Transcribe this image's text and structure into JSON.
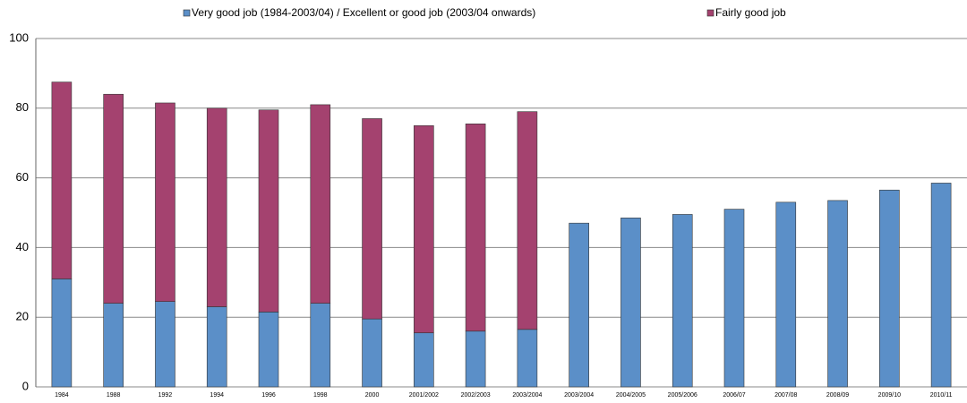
{
  "chart_data": {
    "type": "stacked_bar",
    "categories": [
      "1984",
      "1988",
      "1992",
      "1994",
      "1996",
      "1998",
      "2000",
      "2001/2002",
      "2002/2003",
      "2003/2004",
      "2003/2004",
      "2004/2005",
      "2005/2006",
      "2006/07",
      "2007/08",
      "2008/09",
      "2009/10",
      "2010/11"
    ],
    "series": [
      {
        "name": "Very good job (1984-2003/04) / Excellent or good job (2003/04 onwards)",
        "color": "#5b8fc8",
        "values": [
          31,
          24,
          24.5,
          23,
          21.5,
          24,
          19.5,
          15.5,
          16,
          16.5,
          47,
          48.5,
          49.5,
          51,
          53,
          53.5,
          56.5,
          58.5
        ]
      },
      {
        "name": "Fairly good job",
        "color": "#a4426f",
        "values": [
          56.5,
          60,
          57,
          57,
          58,
          57,
          57.5,
          59.5,
          59.5,
          62.5,
          null,
          null,
          null,
          null,
          null,
          null,
          null,
          null
        ]
      }
    ],
    "ylim": [
      0,
      100
    ],
    "yticks": [
      0,
      20,
      40,
      60,
      80,
      100
    ],
    "grid": true
  }
}
